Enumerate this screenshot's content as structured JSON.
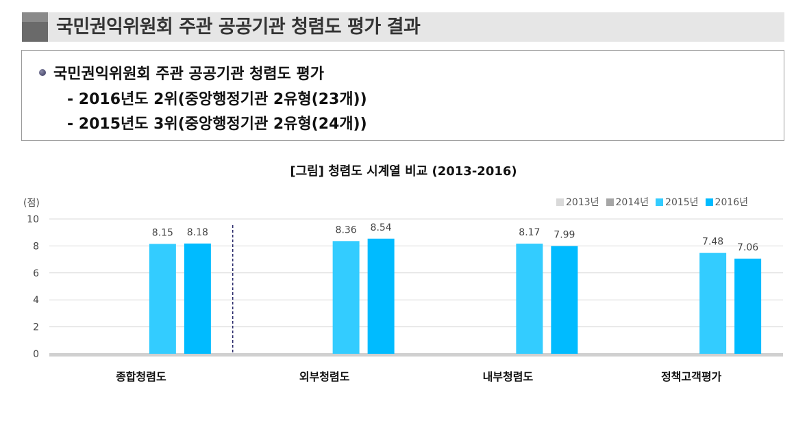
{
  "header": {
    "title": "국민권익위원회 주관 공공기관 청렴도 평가 결과"
  },
  "info": {
    "headline": "국민권익위원회 주관 공공기관 청렴도 평가",
    "lines": [
      "- 2016년도 2위(중앙행정기관 2유형(23개))",
      "- 2015년도 3위(중앙행정기관 2유형(24개))"
    ]
  },
  "chart_data": {
    "type": "bar",
    "title": "[그림] 청렴도 시계열 비교 (2013-2016)",
    "ylabel": "(점)",
    "ylim": [
      0,
      10
    ],
    "yticks": [
      0,
      2,
      4,
      6,
      8,
      10
    ],
    "grid": true,
    "legend_position": "top-right",
    "categories": [
      "종합청렴도",
      "외부청렴도",
      "내부청렴도",
      "정책고객평가"
    ],
    "series": [
      {
        "name": "2013년",
        "color": "#d9d9d9",
        "values": [
          null,
          null,
          null,
          null
        ]
      },
      {
        "name": "2014년",
        "color": "#a6a6a6",
        "values": [
          null,
          null,
          null,
          null
        ]
      },
      {
        "name": "2015년",
        "color": "#33ccff",
        "values": [
          8.15,
          8.36,
          8.17,
          7.48
        ]
      },
      {
        "name": "2016년",
        "color": "#00bbff",
        "values": [
          8.18,
          8.54,
          7.99,
          7.06
        ]
      }
    ],
    "annotations": [
      "dashed divider after 종합청렴도"
    ]
  }
}
